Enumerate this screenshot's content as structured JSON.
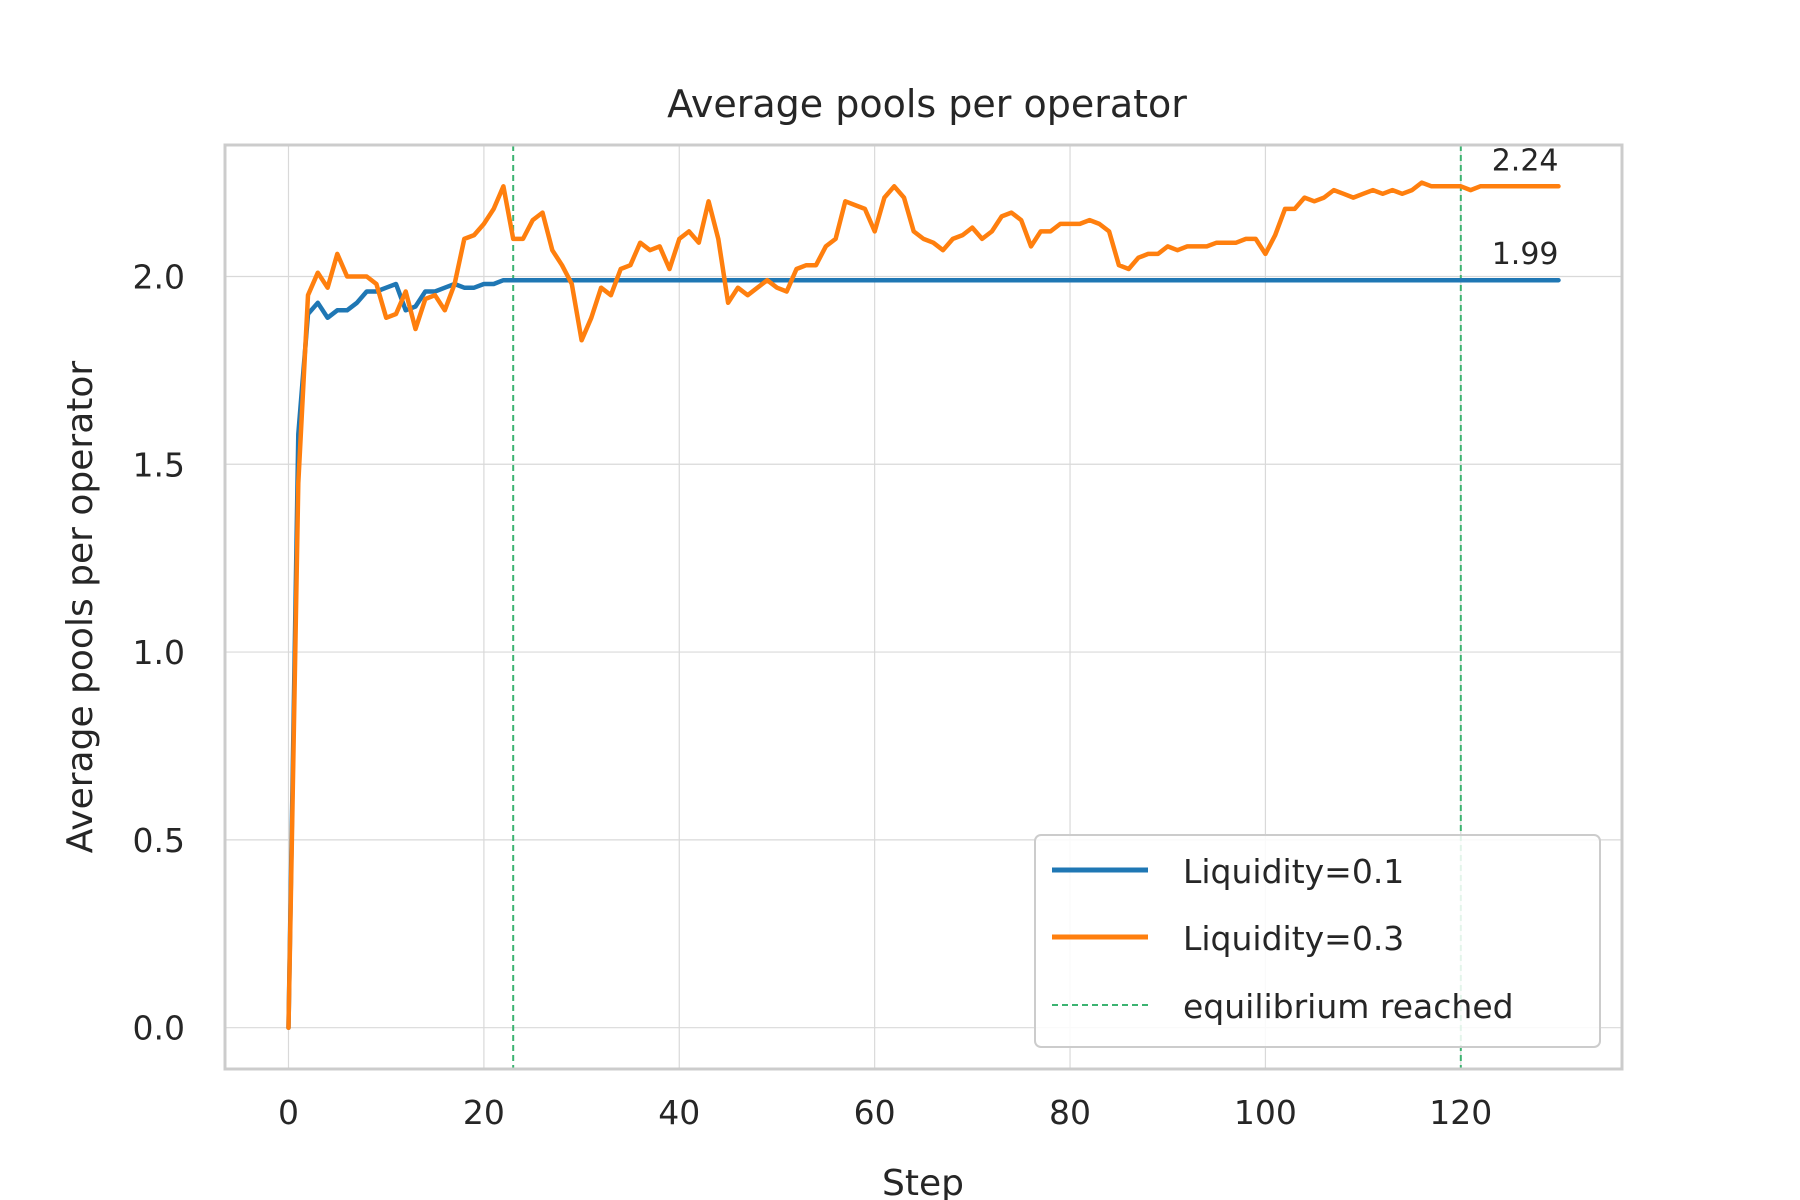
{
  "chart_data": {
    "type": "line",
    "title": "Average pools per operator",
    "xlabel": "Step",
    "ylabel": "Average pools per operator",
    "xlim": [
      -6.5,
      136.5
    ],
    "ylim": [
      -0.11,
      2.35
    ],
    "xticks": [
      0,
      20,
      40,
      60,
      80,
      100,
      120
    ],
    "xtick_labels": [
      "0",
      "20",
      "40",
      "60",
      "80",
      "100",
      "120"
    ],
    "yticks": [
      0.0,
      0.5,
      1.0,
      1.5,
      2.0
    ],
    "ytick_labels": [
      "0.0",
      "0.5",
      "1.0",
      "1.5",
      "2.0"
    ],
    "grid": true,
    "legend_position": "bottom-right",
    "series": [
      {
        "name": "Liquidity=0.1",
        "color": "#1f77b4",
        "x": [
          0,
          1,
          2,
          3,
          4,
          5,
          6,
          7,
          8,
          9,
          10,
          11,
          12,
          13,
          14,
          15,
          16,
          17,
          18,
          19,
          20,
          21,
          22,
          23,
          130
        ],
        "y": [
          0.0,
          1.58,
          1.9,
          1.93,
          1.89,
          1.91,
          1.91,
          1.93,
          1.96,
          1.96,
          1.97,
          1.98,
          1.91,
          1.92,
          1.96,
          1.96,
          1.97,
          1.98,
          1.97,
          1.97,
          1.98,
          1.98,
          1.99,
          1.99,
          1.99
        ]
      },
      {
        "name": "Liquidity=0.3",
        "color": "#ff7f0e",
        "x": [
          0,
          1,
          2,
          3,
          4,
          5,
          6,
          7,
          8,
          9,
          10,
          11,
          12,
          13,
          14,
          15,
          16,
          17,
          18,
          19,
          20,
          21,
          22,
          23,
          24,
          25,
          26,
          27,
          28,
          29,
          30,
          31,
          32,
          33,
          34,
          35,
          36,
          37,
          38,
          39,
          40,
          41,
          42,
          43,
          44,
          45,
          46,
          47,
          48,
          49,
          50,
          51,
          52,
          53,
          54,
          55,
          56,
          57,
          58,
          59,
          60,
          61,
          62,
          63,
          64,
          65,
          66,
          67,
          68,
          69,
          70,
          71,
          72,
          73,
          74,
          75,
          76,
          77,
          78,
          79,
          80,
          81,
          82,
          83,
          84,
          85,
          86,
          87,
          88,
          89,
          90,
          91,
          92,
          93,
          94,
          95,
          96,
          97,
          98,
          99,
          100,
          101,
          102,
          103,
          104,
          105,
          106,
          107,
          108,
          109,
          110,
          111,
          112,
          113,
          114,
          115,
          116,
          117,
          118,
          119,
          120,
          121,
          122,
          123,
          124,
          125,
          126,
          127,
          128,
          129,
          130
        ],
        "y": [
          0.0,
          1.45,
          1.95,
          2.01,
          1.97,
          2.06,
          2.0,
          2.0,
          2.0,
          1.98,
          1.89,
          1.9,
          1.96,
          1.86,
          1.94,
          1.95,
          1.91,
          1.98,
          2.1,
          2.11,
          2.14,
          2.18,
          2.24,
          2.1,
          2.1,
          2.15,
          2.17,
          2.07,
          2.03,
          1.98,
          1.83,
          1.89,
          1.97,
          1.95,
          2.02,
          2.03,
          2.09,
          2.07,
          2.08,
          2.02,
          2.1,
          2.12,
          2.09,
          2.2,
          2.1,
          1.93,
          1.97,
          1.95,
          1.97,
          1.99,
          1.97,
          1.96,
          2.02,
          2.03,
          2.03,
          2.08,
          2.1,
          2.2,
          2.19,
          2.18,
          2.12,
          2.21,
          2.24,
          2.21,
          2.12,
          2.1,
          2.09,
          2.07,
          2.1,
          2.11,
          2.13,
          2.1,
          2.12,
          2.16,
          2.17,
          2.15,
          2.08,
          2.12,
          2.12,
          2.14,
          2.14,
          2.14,
          2.15,
          2.14,
          2.12,
          2.03,
          2.02,
          2.05,
          2.06,
          2.06,
          2.08,
          2.07,
          2.08,
          2.08,
          2.08,
          2.09,
          2.09,
          2.09,
          2.1,
          2.1,
          2.06,
          2.11,
          2.18,
          2.18,
          2.21,
          2.2,
          2.21,
          2.23,
          2.22,
          2.21,
          2.22,
          2.23,
          2.22,
          2.23,
          2.22,
          2.23,
          2.25,
          2.24,
          2.24,
          2.24,
          2.24,
          2.23,
          2.24,
          2.24,
          2.24,
          2.24,
          2.24,
          2.24,
          2.24,
          2.24,
          2.24
        ]
      }
    ],
    "equilibrium": {
      "label": "equilibrium reached",
      "color": "#3cb371",
      "x": [
        23,
        120
      ]
    },
    "end_labels": [
      {
        "text": "2.24",
        "x": 130,
        "y": 2.24
      },
      {
        "text": "1.99",
        "x": 130,
        "y": 1.99
      }
    ]
  }
}
